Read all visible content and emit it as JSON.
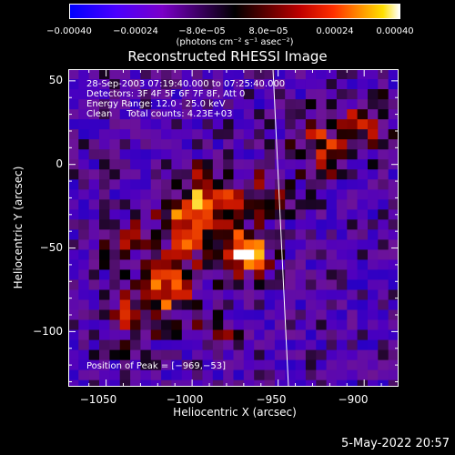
{
  "colorbar": {
    "ticks": [
      "−0.00040",
      "−0.00024",
      "−8.0e−05",
      "8.0e−05",
      "0.00024",
      "0.00040"
    ],
    "units": "(photons cm⁻² s⁻¹ asec⁻²)",
    "range": [
      -0.0004,
      0.0004
    ]
  },
  "chart_data": {
    "type": "heatmap",
    "title": "Reconstructed RHESSI Image",
    "xlabel": "Heliocentric X (arcsec)",
    "ylabel": "Heliocentric Y (arcsec)",
    "xlim": [
      -1072,
      -880
    ],
    "ylim": [
      -133,
      57
    ],
    "xticks": [
      -1050,
      -1000,
      -950,
      -900
    ],
    "yticks": [
      50,
      0,
      -50,
      -100
    ],
    "xtick_labels": [
      "−1050",
      "−1000",
      "−950",
      "−900"
    ],
    "ytick_labels": [
      "50",
      "0",
      "−50",
      "−100"
    ],
    "annotations": [
      "28-Sep-2003 07:19:40.000 to 07:25:40.000",
      "Detectors: 3F 4F 5F 6F 7F 8F, Att 0",
      "Energy Range: 12.0 - 25.0 keV",
      "Clean     Total counts: 4.23E+03"
    ],
    "peak_label": "Position of Peak = [−969,−53]",
    "peak": [
      -969,
      -53
    ],
    "limb_line": [
      [
        -953,
        57
      ],
      [
        -944,
        -133
      ]
    ],
    "sources": [
      {
        "x": -969,
        "y": -53,
        "sigma": 9,
        "amp": 1.0
      },
      {
        "x": -1000,
        "y": -35,
        "sigma": 14,
        "amp": 0.75
      },
      {
        "x": -1012,
        "y": -75,
        "sigma": 11,
        "amp": 0.7
      },
      {
        "x": -990,
        "y": -15,
        "sigma": 10,
        "amp": 0.5
      },
      {
        "x": -960,
        "y": -20,
        "sigma": 10,
        "amp": 0.45
      },
      {
        "x": -925,
        "y": 10,
        "sigma": 12,
        "amp": 0.5
      },
      {
        "x": -900,
        "y": 25,
        "sigma": 10,
        "amp": 0.5
      },
      {
        "x": -1035,
        "y": -90,
        "sigma": 12,
        "amp": 0.45
      },
      {
        "x": -1040,
        "y": -45,
        "sigma": 10,
        "amp": 0.35
      },
      {
        "x": -985,
        "y": -100,
        "sigma": 10,
        "amp": 0.3
      }
    ]
  },
  "footer": {
    "date": "5-May-2022 20:57"
  }
}
